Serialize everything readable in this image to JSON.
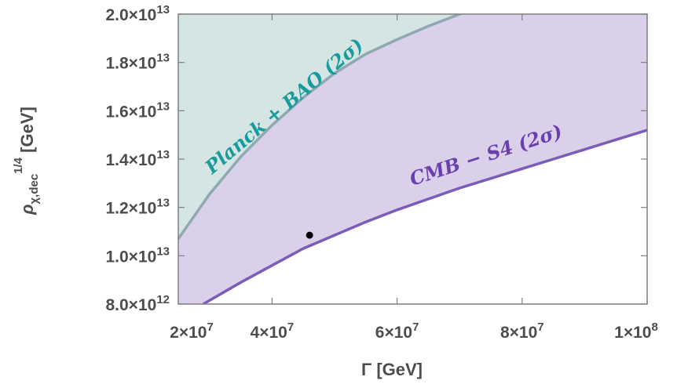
{
  "chart_data": {
    "type": "area",
    "title": "",
    "xlabel": "Γ [GeV]",
    "ylabel_parts": {
      "symbol": "ρ",
      "subscript": "χ,dec",
      "superscript": "1/4",
      "unit": " [GeV]"
    },
    "xlim": [
      25000000.0,
      100000000.0
    ],
    "ylim": [
      8000000000000.0,
      20000000000000.0
    ],
    "grid": false,
    "legend": "none",
    "x_ticks": [
      {
        "value": 20000000.0,
        "mantissa": "2",
        "exp": "7"
      },
      {
        "value": 40000000.0,
        "mantissa": "4",
        "exp": "7"
      },
      {
        "value": 60000000.0,
        "mantissa": "6",
        "exp": "7"
      },
      {
        "value": 80000000.0,
        "mantissa": "8",
        "exp": "7"
      },
      {
        "value": 100000000.0,
        "mantissa": "1",
        "exp": "8"
      }
    ],
    "y_ticks": [
      {
        "value": 8000000000000.0,
        "mantissa": "8.0",
        "exp": "12"
      },
      {
        "value": 10000000000000.0,
        "mantissa": "1.0",
        "exp": "13"
      },
      {
        "value": 12000000000000.0,
        "mantissa": "1.2",
        "exp": "13"
      },
      {
        "value": 14000000000000.0,
        "mantissa": "1.4",
        "exp": "13"
      },
      {
        "value": 16000000000000.0,
        "mantissa": "1.6",
        "exp": "13"
      },
      {
        "value": 18000000000000.0,
        "mantissa": "1.8",
        "exp": "13"
      },
      {
        "value": 20000000000000.0,
        "mantissa": "2.0",
        "exp": "13"
      }
    ],
    "series": [
      {
        "name": "Planck + BAO (2σ)",
        "color": "#8fa9b0",
        "fill": "#d4e5e3",
        "x": [
          25000000.0,
          30000000.0,
          35000000.0,
          40000000.0,
          45000000.0,
          50000000.0,
          55000000.0,
          60000000.0,
          65000000.0,
          70000000.0,
          72000000.0
        ],
        "y": [
          10700000000000.0,
          12550000000000.0,
          14100000000000.0,
          15400000000000.0,
          16550000000000.0,
          17550000000000.0,
          18350000000000.0,
          18950000000000.0,
          19500000000000.0,
          20000000000000.0,
          20200000000000.0
        ]
      },
      {
        "name": "CMB − S4 (2σ)",
        "color": "#7b5cb8",
        "fill": "#dbd0ea",
        "x": [
          29000000.0,
          35000000.0,
          40000000.0,
          45000000.0,
          50000000.0,
          55000000.0,
          60000000.0,
          65000000.0,
          70000000.0,
          75000000.0,
          80000000.0,
          85000000.0,
          90000000.0,
          95000000.0,
          100000000.0
        ],
        "y": [
          8000000000000.0,
          8900000000000.0,
          9600000000000.0,
          10300000000000.0,
          10850000000000.0,
          11400000000000.0,
          11900000000000.0,
          12350000000000.0,
          12800000000000.0,
          13200000000000.0,
          13600000000000.0,
          14000000000000.0,
          14400000000000.0,
          14800000000000.0,
          15200000000000.0
        ]
      }
    ],
    "points": [
      {
        "x": 46000000.0,
        "y": 10850000000000.0,
        "color": "#000000"
      }
    ],
    "annotations": [
      {
        "text": "Planck + BAO (2σ)",
        "color": "#1a9b9b"
      },
      {
        "text": "CMB − S4 (2σ)",
        "color": "#6a3fb0"
      }
    ],
    "colors": {
      "frame": "#7f7f7f",
      "label": "#4d4d4d"
    }
  }
}
